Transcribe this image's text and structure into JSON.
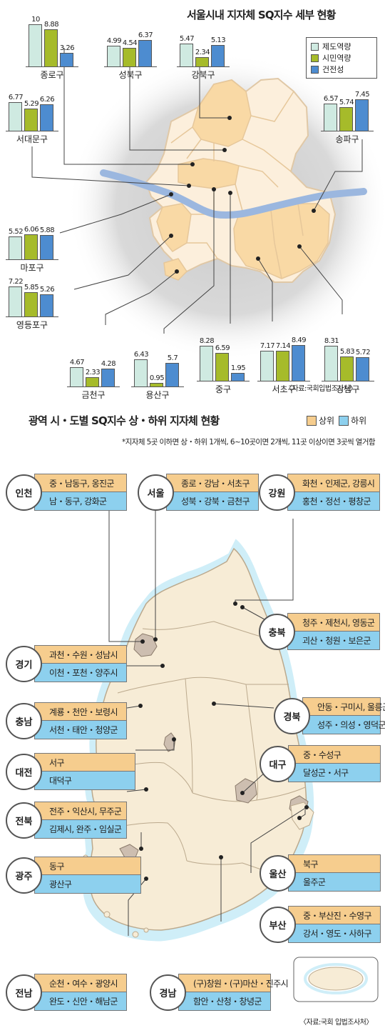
{
  "seoul": {
    "title": "서울시내 지자체 SQ지수 세부 현황",
    "legend": [
      {
        "label": "제도역량",
        "color": "#cfeae1"
      },
      {
        "label": "시민역량",
        "color": "#a6bb2a"
      },
      {
        "label": "건전성",
        "color": "#4d8cd0"
      }
    ],
    "districts": [
      {
        "name": "종로구",
        "values": [
          "10",
          "8.88",
          "3.26"
        ]
      },
      {
        "name": "성북구",
        "values": [
          "4.99",
          "4.54",
          "6.37"
        ]
      },
      {
        "name": "강북구",
        "values": [
          "5.47",
          "2.34",
          "5.13"
        ]
      },
      {
        "name": "서대문구",
        "values": [
          "6.77",
          "5.29",
          "6.26"
        ]
      },
      {
        "name": "송파구",
        "values": [
          "6.57",
          "5.74",
          "7.45"
        ]
      },
      {
        "name": "마포구",
        "values": [
          "5.52",
          "6.06",
          "5.88"
        ]
      },
      {
        "name": "영등포구",
        "values": [
          "7.22",
          "5.85",
          "5.26"
        ]
      },
      {
        "name": "금천구",
        "values": [
          "4.67",
          "2.33",
          "4.28"
        ]
      },
      {
        "name": "용산구",
        "values": [
          "6.43",
          "0.95",
          "5.7"
        ]
      },
      {
        "name": "중구",
        "values": [
          "8.28",
          "6.59",
          "1.95"
        ]
      },
      {
        "name": "서초구",
        "values": [
          "7.17",
          "7.14",
          "8.49"
        ]
      },
      {
        "name": "강남구",
        "values": [
          "8.31",
          "5.83",
          "5.72"
        ]
      }
    ],
    "source": "〈자료:국회입법조사처〉"
  },
  "national": {
    "title": "광역 시・도별 SQ지수 상・하위 지자체 현황",
    "legend_top": "상위",
    "legend_bottom": "하위",
    "legend_top_color": "#f6cd8e",
    "legend_bottom_color": "#8dd0ee",
    "note": "*지자체 5곳 이하면 상・하위 1개씩, 6~10곳이면 2개씩, 11곳 이상이면 3곳씩 열거함",
    "regions": [
      {
        "name": "인천",
        "top": "중・남동구, 옹진군",
        "bottom": "남・동구, 강화군"
      },
      {
        "name": "서울",
        "top": "종로・강남・서초구",
        "bottom": "성북・강북・금천구"
      },
      {
        "name": "강원",
        "top": "화천・인제군, 강릉시",
        "bottom": "홍천・정선・평창군"
      },
      {
        "name": "충북",
        "top": "청주・제천시, 영동군",
        "bottom": "괴산・청원・보은군"
      },
      {
        "name": "경기",
        "top": "과천・수원・성남시",
        "bottom": "이천・포천・양주시"
      },
      {
        "name": "충남",
        "top": "계룡・천안・보령시",
        "bottom": "서천・태안・청양군"
      },
      {
        "name": "경북",
        "top": "안동・구미시, 울릉군",
        "bottom": "성주・의성・영덕군"
      },
      {
        "name": "대전",
        "top": "서구",
        "bottom": "대덕구"
      },
      {
        "name": "대구",
        "top": "중・수성구",
        "bottom": "달성군・서구"
      },
      {
        "name": "전북",
        "top": "전주・익산시, 무주군",
        "bottom": "김제시, 완주・임실군"
      },
      {
        "name": "광주",
        "top": "동구",
        "bottom": "광산구"
      },
      {
        "name": "울산",
        "top": "북구",
        "bottom": "울주군"
      },
      {
        "name": "부산",
        "top": "중・부산진・수영구",
        "bottom": "강서・영도・사하구"
      },
      {
        "name": "전남",
        "top": "순천・여수・광양시",
        "bottom": "완도・신안・해남군"
      },
      {
        "name": "경남",
        "top": "(구)창원・(구)마산・진주시",
        "bottom": "함안・산청・창녕군"
      }
    ],
    "source": "〈자료:국회 입법조사처〉"
  }
}
